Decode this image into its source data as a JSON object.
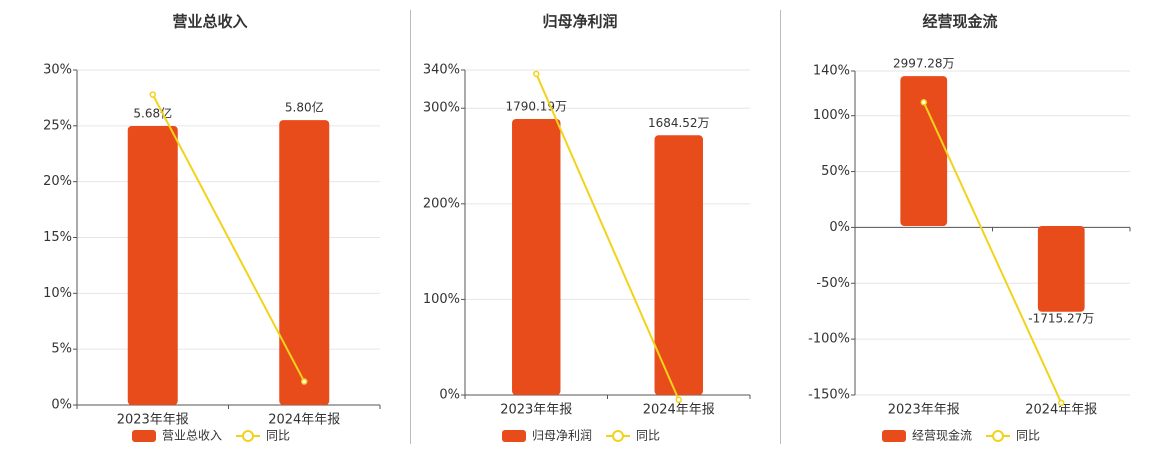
{
  "chart_data": [
    {
      "type": "bar",
      "title": "营业总收入",
      "categories": [
        "2023年年报",
        "2024年年报"
      ],
      "series": [
        {
          "name": "营业总收入",
          "color": "#e84c1a",
          "axis": "y2",
          "values": [
            5.68,
            5.8
          ],
          "value_labels": [
            "5.68亿",
            "5.80亿"
          ]
        },
        {
          "name": "同比",
          "color": "#f2d31b",
          "type": "line",
          "values": [
            27.8,
            2.1
          ]
        }
      ],
      "ylim": [
        0,
        30
      ],
      "yticks": [
        {
          "value": 0,
          "label": "0%"
        },
        {
          "value": 5,
          "label": "5%"
        },
        {
          "value": 10,
          "label": "10%"
        },
        {
          "value": 15,
          "label": "15%"
        },
        {
          "value": 20,
          "label": "20%"
        },
        {
          "value": 25,
          "label": "25%"
        },
        {
          "value": 30,
          "label": "30%"
        }
      ],
      "y2lim": [
        0,
        6.82
      ],
      "grid": true
    },
    {
      "type": "bar",
      "title": "归母净利润",
      "categories": [
        "2023年年报",
        "2024年年报"
      ],
      "series": [
        {
          "name": "归母净利润",
          "color": "#e84c1a",
          "axis": "y2",
          "values": [
            1790.19,
            1684.52
          ],
          "value_labels": [
            "1790.19万",
            "1684.52万"
          ]
        },
        {
          "name": "同比",
          "color": "#f2d31b",
          "type": "line",
          "values": [
            336,
            -5
          ]
        }
      ],
      "ylim": [
        0,
        340
      ],
      "yticks": [
        {
          "value": 0,
          "label": "0%"
        },
        {
          "value": 100,
          "label": "100%"
        },
        {
          "value": 200,
          "label": "200%"
        },
        {
          "value": 300,
          "label": "300%"
        },
        {
          "value": 340,
          "label": "340%"
        }
      ],
      "y2lim": [
        0,
        2108
      ],
      "grid": true
    },
    {
      "type": "bar",
      "title": "经营现金流",
      "categories": [
        "2023年年报",
        "2024年年报"
      ],
      "series": [
        {
          "name": "经营现金流",
          "color": "#e84c1a",
          "axis": "y2",
          "values": [
            2997.28,
            -1715.27
          ],
          "value_labels": [
            "2997.28万",
            "-1715.27万"
          ]
        },
        {
          "name": "同比",
          "color": "#f2d31b",
          "type": "line",
          "values": [
            112,
            -157
          ]
        }
      ],
      "ylim": [
        -150,
        140
      ],
      "yticks": [
        {
          "value": -150,
          "label": "-150%"
        },
        {
          "value": -100,
          "label": "-100%"
        },
        {
          "value": -50,
          "label": "-50%"
        },
        {
          "value": 0,
          "label": "0%"
        },
        {
          "value": 50,
          "label": "50%"
        },
        {
          "value": 100,
          "label": "100%"
        },
        {
          "value": 140,
          "label": "140%"
        }
      ],
      "y2lim": [
        -3380,
        3100
      ],
      "grid": true
    }
  ]
}
